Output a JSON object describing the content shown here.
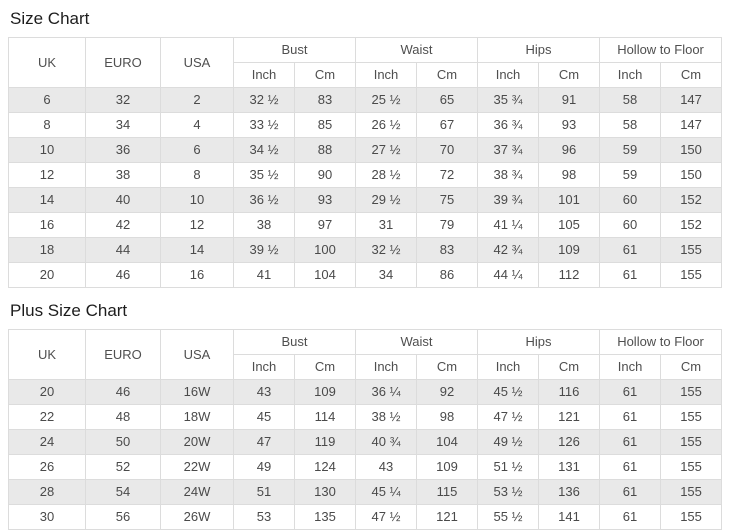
{
  "colors": {
    "stripe": "#e9e9e9",
    "border": "#dcdcdc",
    "text": "#4a4a4a",
    "title_text": "#1d1d1d",
    "background": "#ffffff"
  },
  "headers": {
    "uk": "UK",
    "euro": "EURO",
    "usa": "USA",
    "bust": "Bust",
    "waist": "Waist",
    "hips": "Hips",
    "hollow_to_floor": "Hollow to Floor",
    "inch": "Inch",
    "cm": "Cm"
  },
  "tables": [
    {
      "title": "Size Chart",
      "rows": [
        [
          "6",
          "32",
          "2",
          "32 ½",
          "83",
          "25 ½",
          "65",
          "35 ¾",
          "91",
          "58",
          "147"
        ],
        [
          "8",
          "34",
          "4",
          "33 ½",
          "85",
          "26 ½",
          "67",
          "36 ¾",
          "93",
          "58",
          "147"
        ],
        [
          "10",
          "36",
          "6",
          "34 ½",
          "88",
          "27 ½",
          "70",
          "37 ¾",
          "96",
          "59",
          "150"
        ],
        [
          "12",
          "38",
          "8",
          "35 ½",
          "90",
          "28 ½",
          "72",
          "38 ¾",
          "98",
          "59",
          "150"
        ],
        [
          "14",
          "40",
          "10",
          "36 ½",
          "93",
          "29 ½",
          "75",
          "39 ¾",
          "101",
          "60",
          "152"
        ],
        [
          "16",
          "42",
          "12",
          "38",
          "97",
          "31",
          "79",
          "41 ¼",
          "105",
          "60",
          "152"
        ],
        [
          "18",
          "44",
          "14",
          "39 ½",
          "100",
          "32 ½",
          "83",
          "42 ¾",
          "109",
          "61",
          "155"
        ],
        [
          "20",
          "46",
          "16",
          "41",
          "104",
          "34",
          "86",
          "44 ¼",
          "112",
          "61",
          "155"
        ]
      ]
    },
    {
      "title": "Plus Size Chart",
      "rows": [
        [
          "20",
          "46",
          "16W",
          "43",
          "109",
          "36 ¼",
          "92",
          "45 ½",
          "116",
          "61",
          "155"
        ],
        [
          "22",
          "48",
          "18W",
          "45",
          "114",
          "38 ½",
          "98",
          "47 ½",
          "121",
          "61",
          "155"
        ],
        [
          "24",
          "50",
          "20W",
          "47",
          "119",
          "40 ¾",
          "104",
          "49 ½",
          "126",
          "61",
          "155"
        ],
        [
          "26",
          "52",
          "22W",
          "49",
          "124",
          "43",
          "109",
          "51 ½",
          "131",
          "61",
          "155"
        ],
        [
          "28",
          "54",
          "24W",
          "51",
          "130",
          "45 ¼",
          "115",
          "53 ½",
          "136",
          "61",
          "155"
        ],
        [
          "30",
          "56",
          "26W",
          "53",
          "135",
          "47 ½",
          "121",
          "55 ½",
          "141",
          "61",
          "155"
        ]
      ]
    }
  ]
}
